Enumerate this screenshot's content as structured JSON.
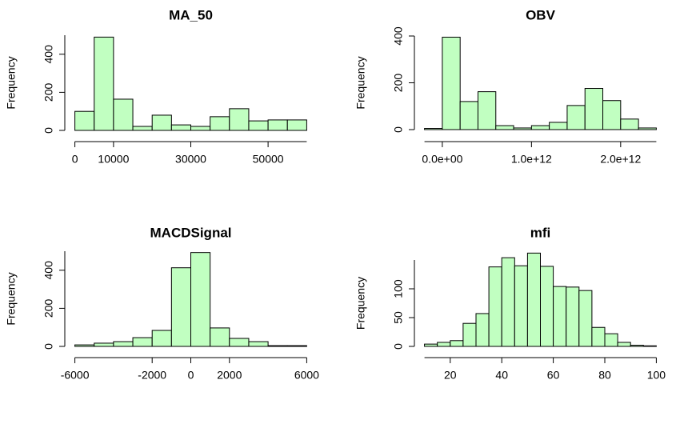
{
  "chart_data": [
    {
      "type": "histogram",
      "title": "MA_50",
      "ylabel": "Frequency",
      "color": "#c1ffc1",
      "bins": [
        0,
        5000,
        10000,
        15000,
        20000,
        25000,
        30000,
        35000,
        40000,
        45000,
        50000,
        55000,
        60000
      ],
      "values": [
        100,
        490,
        164,
        21,
        80,
        29,
        21,
        72,
        114,
        50,
        55,
        55
      ],
      "xlim": [
        0,
        60000
      ],
      "xticks": [
        0,
        10000,
        30000,
        50000
      ],
      "ylim": [
        0,
        500
      ],
      "yticks": [
        0,
        200,
        400
      ]
    },
    {
      "type": "histogram",
      "title": "OBV",
      "ylabel": "Frequency",
      "color": "#c1ffc1",
      "bins": [
        -200000000000,
        0,
        200000000000,
        400000000000,
        600000000000,
        800000000000,
        1000000000000,
        1200000000000,
        1400000000000,
        1600000000000,
        1800000000000,
        2000000000000,
        2200000000000,
        2400000000000
      ],
      "values": [
        5,
        395,
        120,
        162,
        17,
        7,
        17,
        31,
        103,
        176,
        124,
        45,
        7
      ],
      "xlim": [
        -200000000000,
        2400000000000
      ],
      "xticks": [
        {
          "value": 0,
          "label": "0.0e+00"
        },
        {
          "value": 1000000000000,
          "label": "1.0e+12"
        },
        {
          "value": 2000000000000,
          "label": "2.0e+12"
        }
      ],
      "ylim": [
        0,
        400
      ],
      "yticks": [
        0,
        200,
        400
      ]
    },
    {
      "type": "histogram",
      "title": "MACDSignal",
      "ylabel": "Frequency",
      "color": "#c1ffc1",
      "bins": [
        -6000,
        -5000,
        -4000,
        -3000,
        -2000,
        -1000,
        0,
        1000,
        2000,
        3000,
        4000,
        5000,
        6000
      ],
      "values": [
        8,
        17,
        25,
        46,
        84,
        413,
        493,
        97,
        42,
        25,
        4,
        4
      ],
      "xlim": [
        -6000,
        6000
      ],
      "xticks": [
        -6000,
        -2000,
        0,
        2000,
        6000
      ],
      "ylim": [
        0,
        500
      ],
      "yticks": [
        0,
        200,
        400
      ]
    },
    {
      "type": "histogram",
      "title": "mfi",
      "ylabel": "Frequency",
      "color": "#c1ffc1",
      "bins": [
        10,
        15,
        20,
        25,
        30,
        35,
        40,
        45,
        50,
        55,
        60,
        65,
        70,
        75,
        80,
        85,
        90,
        95,
        100
      ],
      "values": [
        4,
        7,
        10,
        40,
        57,
        138,
        154,
        140,
        162,
        139,
        104,
        103,
        97,
        33,
        22,
        7,
        2,
        1
      ],
      "xlim": [
        10,
        100
      ],
      "xticks": [
        20,
        40,
        60,
        80,
        100
      ],
      "ylim": [
        0,
        150
      ],
      "yticks": [
        0,
        50,
        100
      ]
    }
  ]
}
